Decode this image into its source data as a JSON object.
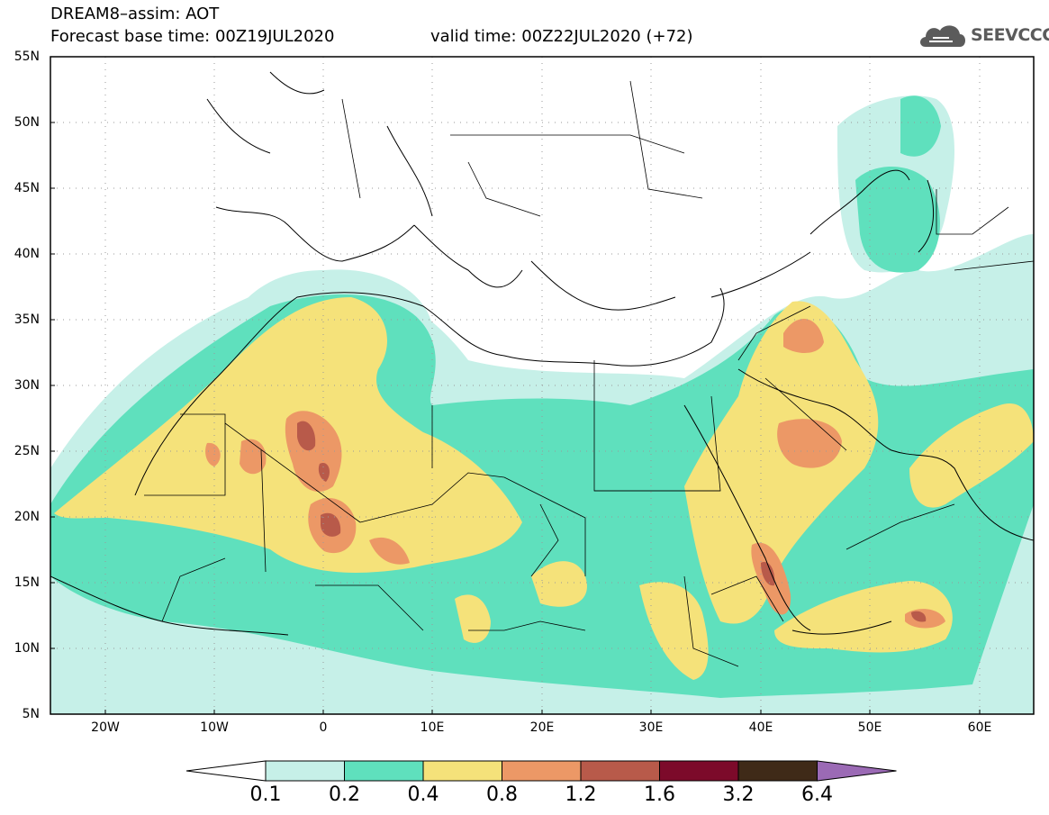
{
  "title": {
    "line1": "DREAM8–assim: AOT",
    "line2": "Forecast base time: 00Z19JUL2020",
    "valid": "valid time: 00Z22JUL2020 (+72)"
  },
  "logo": {
    "text": "SEEVCCC",
    "icon": "cloud-icon"
  },
  "map": {
    "lat_labels": [
      "55N",
      "50N",
      "45N",
      "40N",
      "35N",
      "30N",
      "25N",
      "20N",
      "15N",
      "10N",
      "5N"
    ],
    "lon_labels": [
      "20W",
      "10W",
      "0",
      "10E",
      "20E",
      "30E",
      "40E",
      "50E",
      "60E"
    ],
    "lat_range": [
      5,
      55
    ],
    "lon_range": [
      -25,
      65
    ],
    "grid": "dotted"
  },
  "colorbar": {
    "labels": [
      "0.1",
      "0.2",
      "0.4",
      "0.8",
      "1.2",
      "1.6",
      "3.2",
      "6.4"
    ],
    "colors": [
      "#ffffff",
      "#c6f0e8",
      "#5fe0bd",
      "#f5e27a",
      "#ec9866",
      "#b85a4a",
      "#7c0a2a",
      "#3f2a18",
      "#9b6ab5"
    ]
  }
}
